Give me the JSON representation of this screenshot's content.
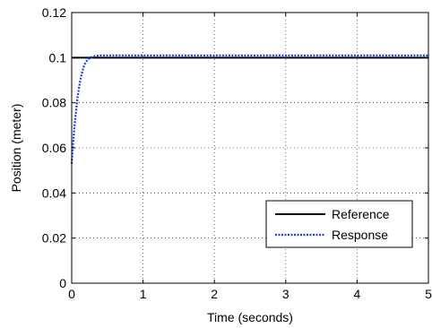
{
  "chart_data": {
    "type": "line",
    "title": "",
    "xlabel": "Time (seconds)",
    "ylabel": "Position (meter)",
    "xlim": [
      0,
      5
    ],
    "ylim": [
      0,
      0.12
    ],
    "xticks": [
      0,
      1,
      2,
      3,
      4,
      5
    ],
    "xtick_labels": [
      "0",
      "1",
      "2",
      "3",
      "4",
      "5"
    ],
    "yticks": [
      0,
      0.02,
      0.04,
      0.06,
      0.08,
      0.1,
      0.12
    ],
    "ytick_labels": [
      "0",
      "0.02",
      "0.04",
      "0.06",
      "0.08",
      "0.1",
      "0.12"
    ],
    "grid": true,
    "legend_position": "lower-right",
    "series": [
      {
        "name": "Reference",
        "color": "#000000",
        "style": "solid",
        "x": [
          0,
          5
        ],
        "y": [
          0.1,
          0.1
        ]
      },
      {
        "name": "Response",
        "color": "#1f3fd6",
        "style": "dotted",
        "x": [
          0,
          0.02,
          0.04,
          0.06,
          0.08,
          0.1,
          0.12,
          0.15,
          0.18,
          0.22,
          0.26,
          0.3,
          0.35,
          0.4,
          0.5,
          1,
          2,
          3,
          4,
          5
        ],
        "y": [
          0.053,
          0.062,
          0.07,
          0.076,
          0.082,
          0.086,
          0.09,
          0.094,
          0.097,
          0.099,
          0.1,
          0.1005,
          0.1008,
          0.101,
          0.101,
          0.101,
          0.101,
          0.101,
          0.101,
          0.101
        ]
      }
    ]
  }
}
